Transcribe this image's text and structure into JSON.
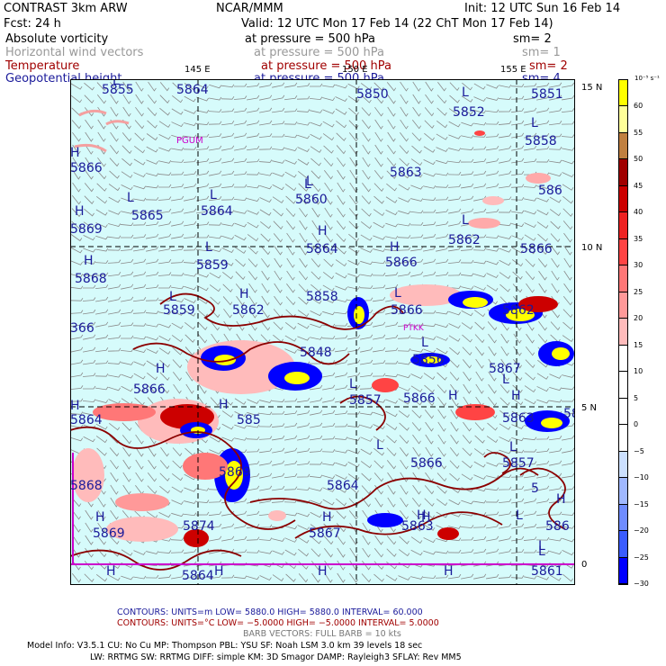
{
  "header": {
    "model": "CONTRAST  3km ARW",
    "center": "NCAR/MMM",
    "init": "Init: 12 UTC Sun 16 Feb 14",
    "fcst": "Fcst:   24 h",
    "valid": "Valid: 12 UTC Mon 17 Feb 14 (22 ChT Mon 17 Feb 14)"
  },
  "fields": [
    {
      "name": "Absolute vorticity",
      "pressure": "at pressure =  500 hPa",
      "sm": "sm= 2",
      "color": "#000000"
    },
    {
      "name": "Horizontal wind vectors",
      "pressure": "at pressure =  500 hPa",
      "sm": "sm= 1",
      "color": "#999999"
    },
    {
      "name": "Temperature",
      "pressure": "at pressure =  500 hPa",
      "sm": "sm= 2",
      "color": "#a00000"
    },
    {
      "name": "Geopotential height",
      "pressure": "at pressure =  500 hPa",
      "sm": "sm= 4",
      "color": "#1a1a9a"
    }
  ],
  "axes": {
    "lon_labels": [
      "145 E",
      "150 E",
      "155 E"
    ],
    "lat_labels": [
      "15 N",
      "10 N",
      "5 N",
      "0"
    ]
  },
  "stations": [
    "PGUM",
    "PTKK"
  ],
  "height_labels": [
    {
      "t": "5855"
    },
    {
      "t": "5864"
    },
    {
      "t": "5850"
    },
    {
      "t": "5852"
    },
    {
      "t": "5851"
    },
    {
      "t": "5858"
    },
    {
      "t": "5866"
    },
    {
      "t": "5863"
    },
    {
      "t": "586"
    },
    {
      "t": "5865"
    },
    {
      "t": "5864"
    },
    {
      "t": "5860"
    },
    {
      "t": "5869"
    },
    {
      "t": "5864"
    },
    {
      "t": "5866"
    },
    {
      "t": "5862"
    },
    {
      "t": "5859"
    },
    {
      "t": "5866"
    },
    {
      "t": "5868"
    },
    {
      "t": "5858"
    },
    {
      "t": "5859"
    },
    {
      "t": "5862"
    },
    {
      "t": "5866"
    },
    {
      "t": "5862"
    },
    {
      "t": "366"
    },
    {
      "t": "5848"
    },
    {
      "t": "5856"
    },
    {
      "t": "5867"
    },
    {
      "t": "5866"
    },
    {
      "t": "5857"
    },
    {
      "t": "5866"
    },
    {
      "t": "5863"
    },
    {
      "t": "5864"
    },
    {
      "t": "585"
    },
    {
      "t": "5866"
    },
    {
      "t": "5857"
    },
    {
      "t": "5863"
    },
    {
      "t": "5869"
    },
    {
      "t": "5868"
    },
    {
      "t": "5864"
    },
    {
      "t": "5874"
    },
    {
      "t": "5863"
    },
    {
      "t": "586"
    },
    {
      "t": "5869"
    },
    {
      "t": "5867"
    },
    {
      "t": "5864"
    },
    {
      "t": "5861"
    },
    {
      "t": "5"
    }
  ],
  "hl_letters": [
    {
      "t": "L"
    },
    {
      "t": "L"
    },
    {
      "t": "L"
    },
    {
      "t": "L"
    },
    {
      "t": "H"
    },
    {
      "t": "L"
    },
    {
      "t": "L"
    },
    {
      "t": "L"
    },
    {
      "t": "H"
    },
    {
      "t": "L"
    },
    {
      "t": "H"
    },
    {
      "t": "H"
    },
    {
      "t": "L"
    },
    {
      "t": "H"
    },
    {
      "t": "L"
    },
    {
      "t": "H"
    },
    {
      "t": "L"
    },
    {
      "t": "L"
    },
    {
      "t": "H"
    },
    {
      "t": "L"
    },
    {
      "t": "L"
    },
    {
      "t": "H"
    },
    {
      "t": "H"
    },
    {
      "t": "H"
    },
    {
      "t": "H"
    },
    {
      "t": "L"
    },
    {
      "t": "L"
    },
    {
      "t": "H"
    },
    {
      "t": "L"
    },
    {
      "t": "H"
    },
    {
      "t": "H"
    },
    {
      "t": "H"
    },
    {
      "t": "H"
    },
    {
      "t": "H"
    },
    {
      "t": "H"
    },
    {
      "t": "L"
    },
    {
      "t": "H"
    },
    {
      "t": "L"
    },
    {
      "t": "H"
    }
  ],
  "colorbar": {
    "unit": "10⁻⁵ s⁻¹",
    "labels": [
      "60",
      "55",
      "50",
      "45",
      "40",
      "35",
      "30",
      "25",
      "20",
      "15",
      "10",
      "5",
      "0",
      "−5",
      "−10",
      "−15",
      "−20",
      "−25",
      "−30"
    ],
    "colors": [
      "#ffff00",
      "#ffff99",
      "#c08040",
      "#a00000",
      "#cc0000",
      "#ee2222",
      "#ff4444",
      "#ff7777",
      "#ff9999",
      "#ffbbbb",
      "#ffffff",
      "#ffffff",
      "#ffffff",
      "#ffffff",
      "#cce0ff",
      "#a0b8ff",
      "#6f8cff",
      "#3a5cff",
      "#0000ff"
    ]
  },
  "footer": {
    "contours1": "CONTOURS:  UNITS=m   LOW=  5880.0           HIGH=  5880.0           INTERVAL=   60.000",
    "contours2": "CONTOURS:  UNITS=°C   LOW=  −5.0000        HIGH=  −5.0000        INTERVAL=   5.0000",
    "barb": "BARB VECTORS:  FULL BARB = 10 kts",
    "info1": "Model Info: V3.5.1      CU: No Cu      MP: Thompson      PBL: YSU        SF: Noah LSM      3.0 km   39 levels    18 sec",
    "info2": "LW: RRTMG     SW: RRTMG   DIFF: simple KM: 3D Smagor DAMP: Rayleigh3  SFLAY: Rev MM5"
  }
}
